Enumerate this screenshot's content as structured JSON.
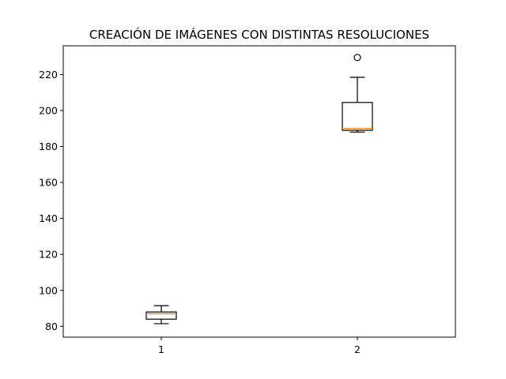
{
  "chart_data": {
    "type": "boxplot",
    "title": "CREACIÓN DE IMÁGENES CON DISTINTAS RESOLUCIONES",
    "xlabel": "",
    "ylabel": "",
    "categories": [
      "1",
      "2"
    ],
    "ylim": [
      74,
      236
    ],
    "yticks": [
      80,
      100,
      120,
      140,
      160,
      180,
      200,
      220
    ],
    "grid": false,
    "boxes": [
      {
        "category": "1",
        "whisker_low": 81.5,
        "q1": 84,
        "median": 87,
        "q3": 88,
        "whisker_high": 91.5,
        "outliers": []
      },
      {
        "category": "2",
        "whisker_low": 188,
        "q1": 189,
        "median": 190,
        "q3": 204.5,
        "whisker_high": 218.5,
        "outliers": [
          229.5
        ]
      }
    ],
    "colors": {
      "box": "#000000",
      "median": "#ff7f0e",
      "outlier": "#000000"
    }
  }
}
